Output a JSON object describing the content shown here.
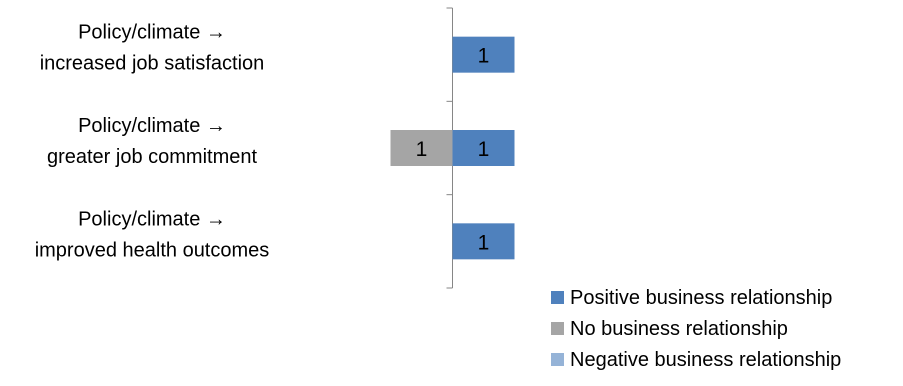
{
  "chart_data": {
    "type": "bar",
    "orientation": "horizontal",
    "stacked": "diverging",
    "categories": [
      "Policy/climate → increased job satisfaction",
      "Policy/climate → greater job commitment",
      "Policy/climate → improved health outcomes"
    ],
    "category_lines": [
      [
        "Policy/climate →",
        "increased job satisfaction"
      ],
      [
        "Policy/climate →",
        "greater job commitment"
      ],
      [
        "Policy/climate →",
        "improved health outcomes"
      ]
    ],
    "series": [
      {
        "name": "Positive business relationship",
        "color": "#4f81bd",
        "direction": "right",
        "values": [
          1,
          1,
          1
        ]
      },
      {
        "name": "No business relationship",
        "color": "#a5a5a5",
        "direction": "left",
        "values": [
          0,
          1,
          0
        ]
      },
      {
        "name": "Negative business relationship",
        "color": "#95b3d7",
        "direction": "left",
        "values": [
          0,
          0,
          0
        ]
      }
    ],
    "data_labels": true,
    "legend_position": "bottom-right",
    "grid": false
  }
}
